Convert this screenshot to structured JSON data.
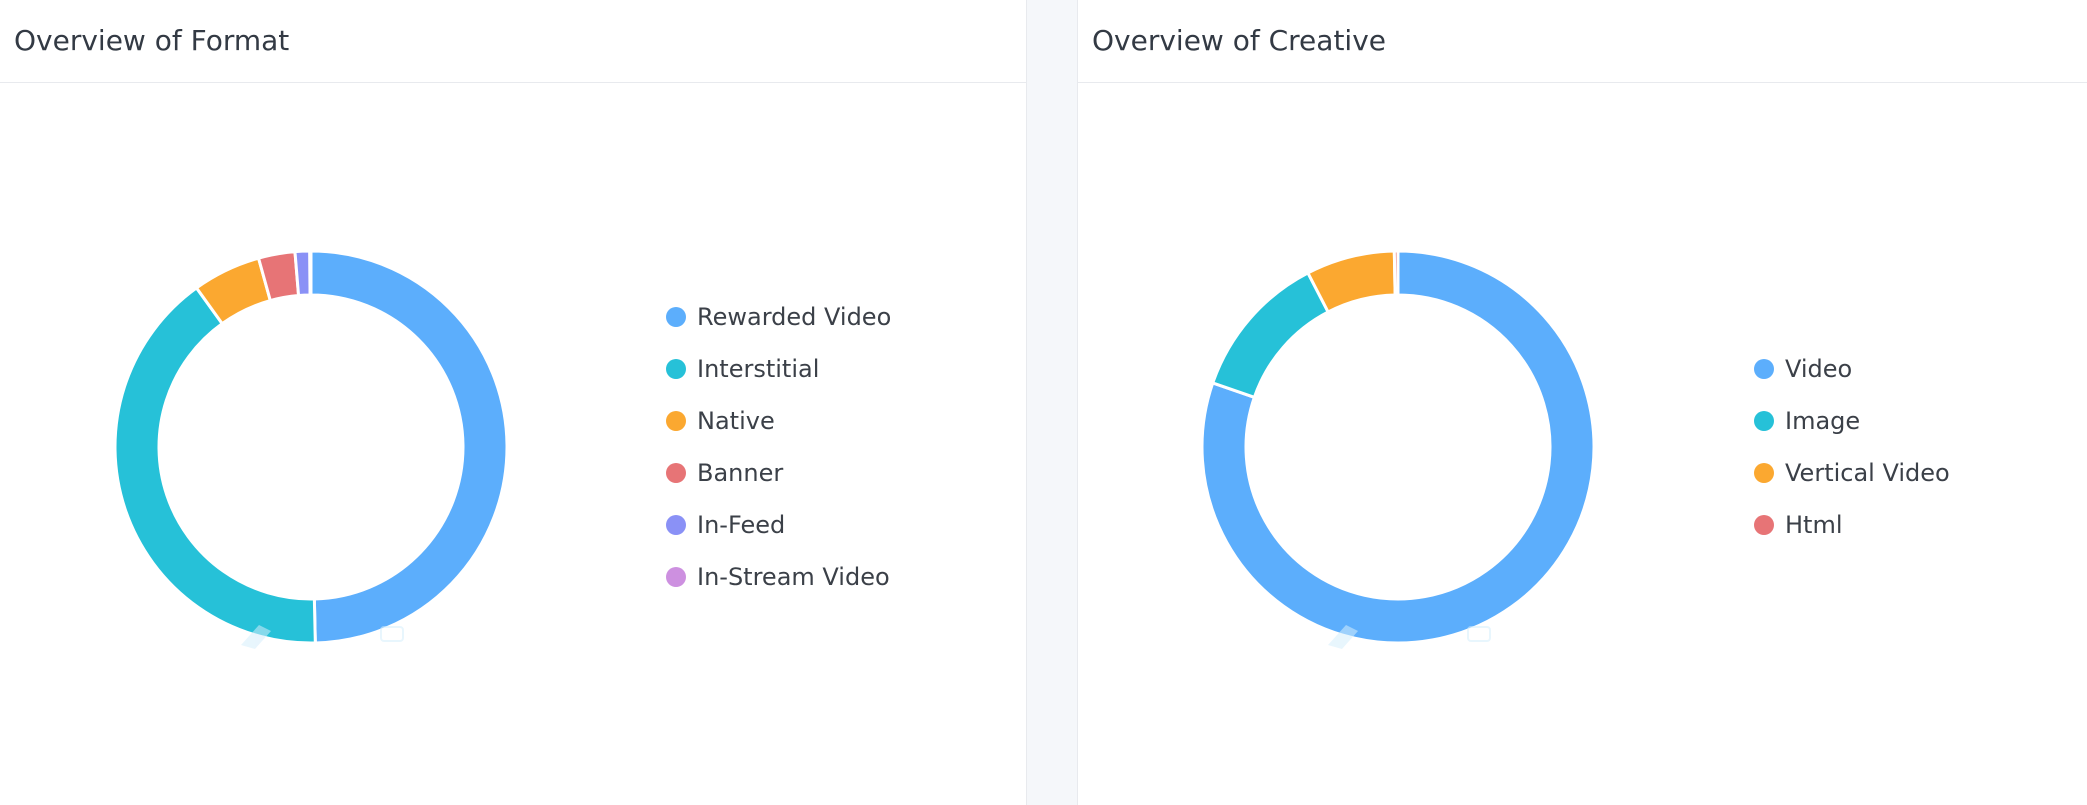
{
  "panels": {
    "format": {
      "title": "Overview of Format"
    },
    "creative": {
      "title": "Overview of Creative"
    }
  },
  "chart_data": [
    {
      "type": "pie",
      "variant": "donut",
      "title": "Overview of Format",
      "legend_position": "right",
      "slices": [
        {
          "label": "Rewarded Video",
          "value": 49.5,
          "color": "#5caefc"
        },
        {
          "label": "Interstitial",
          "value": 40.3,
          "color": "#26c1d8"
        },
        {
          "label": "Native",
          "value": 5.6,
          "color": "#fba830"
        },
        {
          "label": "Banner",
          "value": 3.0,
          "color": "#e77476"
        },
        {
          "label": "In-Feed",
          "value": 1.2,
          "color": "#8a91f6"
        },
        {
          "label": "In-Stream Video",
          "value": 0.1,
          "color": "#cd90e0"
        }
      ]
    },
    {
      "type": "pie",
      "variant": "donut",
      "title": "Overview of Creative",
      "legend_position": "right",
      "slices": [
        {
          "label": "Video",
          "value": 80.3,
          "color": "#5caefc"
        },
        {
          "label": "Image",
          "value": 12.1,
          "color": "#26c1d8"
        },
        {
          "label": "Vertical Video",
          "value": 7.3,
          "color": "#fba830"
        },
        {
          "label": "Html",
          "value": 0.3,
          "color": "#e77476"
        }
      ]
    }
  ]
}
